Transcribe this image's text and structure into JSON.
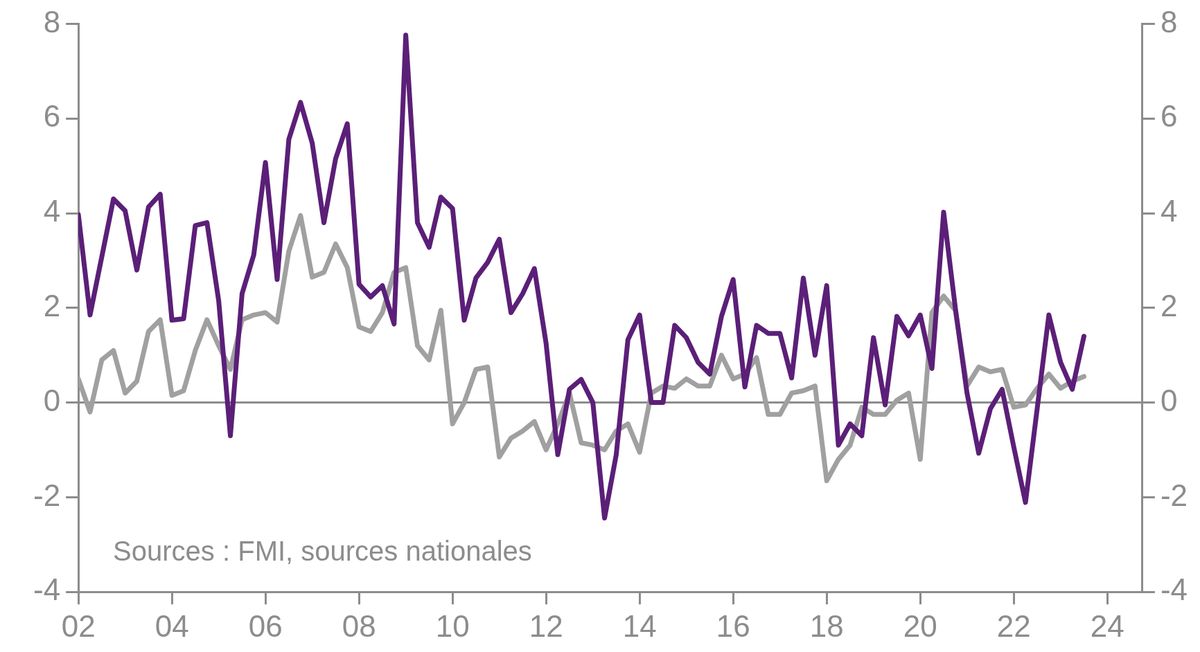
{
  "chart_data": {
    "type": "line",
    "x": [
      2002.0,
      2002.25,
      2002.75,
      2003.0,
      2003.25,
      2003.5,
      2003.75,
      2004.0,
      2004.25,
      2004.5,
      2004.75,
      2005.0,
      2005.25,
      2005.5,
      2005.75,
      2006.0,
      2006.25,
      2006.5,
      2006.75,
      2007.0,
      2007.25,
      2007.5,
      2007.75,
      2008.0,
      2008.25,
      2008.5,
      2008.75,
      2009.0,
      2009.25,
      2009.5,
      2009.75,
      2010.0,
      2010.25,
      2010.5,
      2010.75,
      2011.0,
      2011.25,
      2011.5,
      2011.75,
      2012.0,
      2012.25,
      2012.5,
      2012.75,
      2013.0,
      2013.25,
      2013.5,
      2013.75,
      2014.0,
      2014.25,
      2014.5,
      2014.75,
      2015.0,
      2015.25,
      2015.5,
      2015.75,
      2016.0,
      2016.25,
      2016.5,
      2016.75,
      2017.0,
      2017.25,
      2017.5,
      2017.75,
      2018.0,
      2018.25,
      2018.5,
      2018.75,
      2019.0,
      2019.25,
      2019.5,
      2019.75,
      2020.0,
      2020.25,
      2020.5,
      2020.75,
      2021.0,
      2021.25,
      2021.5,
      2021.75,
      2022.0,
      2022.25,
      2022.5,
      2022.75,
      2023.0,
      2023.25,
      2023.5
    ],
    "series": [
      {
        "color": "#5b1f78",
        "values": [
          3.97,
          1.85,
          4.3,
          4.05,
          2.8,
          4.13,
          4.4,
          1.74,
          1.77,
          3.74,
          3.8,
          2.15,
          -0.7,
          2.3,
          3.12,
          5.07,
          2.6,
          5.56,
          6.34,
          5.48,
          3.8,
          5.15,
          5.89,
          2.5,
          2.23,
          2.47,
          1.66,
          7.76,
          3.8,
          3.28,
          4.34,
          4.1,
          1.74,
          2.63,
          2.96,
          3.45,
          1.9,
          2.3,
          2.83,
          1.25,
          -1.1,
          0.28,
          0.49,
          0,
          -2.44,
          -1.1,
          1.33,
          1.85,
          0,
          0,
          1.63,
          1.37,
          0.85,
          0.6,
          1.82,
          2.6,
          0.33,
          1.63,
          1.46,
          1.46,
          0.52,
          2.63,
          1.0,
          2.47,
          -0.9,
          -0.45,
          -0.7,
          1.37,
          -0.05,
          1.82,
          1.41,
          1.85,
          0.72,
          4.02,
          2.0,
          0.2,
          -1.07,
          -0.13,
          0.28,
          -0.94,
          -2.11,
          -0.13,
          1.85,
          0.85,
          0.28,
          1.4
        ]
      },
      {
        "color": "#a0a0a0",
        "x": [
          2002.0,
          2002.25,
          2002.5,
          2002.75,
          2003.0,
          2003.25,
          2003.5,
          2003.75,
          2004.0,
          2004.25,
          2004.5,
          2004.75,
          2005.0,
          2005.25,
          2005.5,
          2005.75,
          2006.0,
          2006.25,
          2006.5,
          2006.75,
          2007.0,
          2007.25,
          2007.5,
          2007.75,
          2008.0,
          2008.25,
          2008.5,
          2008.75,
          2009.0,
          2009.25,
          2009.5,
          2009.75,
          2010.0,
          2010.25,
          2010.5,
          2010.75,
          2011.0,
          2011.25,
          2011.5,
          2011.75,
          2012.0,
          2012.25,
          2012.5,
          2012.75,
          2013.0,
          2013.25,
          2013.5,
          2013.75,
          2014.0,
          2014.25,
          2014.5,
          2014.75,
          2015.0,
          2015.25,
          2015.5,
          2015.75,
          2016.0,
          2016.25,
          2016.5,
          2016.75,
          2017.0,
          2017.25,
          2017.5,
          2017.75,
          2018.0,
          2018.25,
          2018.5,
          2018.75,
          2019.0,
          2019.25,
          2019.5,
          2019.75,
          2020.0,
          2020.25,
          2020.5,
          2020.75,
          2021.0,
          2021.25,
          2021.5,
          2021.75,
          2022.0,
          2022.25,
          2022.5,
          2022.75,
          2023.0,
          2023.25,
          2023.5
        ],
        "values": [
          0.5,
          -0.2,
          0.9,
          1.1,
          0.2,
          0.45,
          1.5,
          1.75,
          0.15,
          0.25,
          1.1,
          1.75,
          1.2,
          0.7,
          1.75,
          1.85,
          1.9,
          1.7,
          3.2,
          3.95,
          2.65,
          2.75,
          3.35,
          2.85,
          1.6,
          1.5,
          1.9,
          2.75,
          2.85,
          1.2,
          0.9,
          1.95,
          -0.45,
          0.0,
          0.7,
          0.75,
          -1.15,
          -0.75,
          -0.6,
          -0.4,
          -1.0,
          -0.45,
          0.2,
          -0.85,
          -0.9,
          -1.0,
          -0.6,
          -0.45,
          -1.05,
          0.2,
          0.35,
          0.3,
          0.5,
          0.35,
          0.35,
          1.0,
          0.5,
          0.6,
          0.95,
          -0.25,
          -0.25,
          0.2,
          0.25,
          0.35,
          -1.65,
          -1.2,
          -0.9,
          -0.1,
          -0.25,
          -0.25,
          0.05,
          0.2,
          -1.2,
          1.9,
          2.25,
          1.95,
          0.35,
          0.75,
          0.65,
          0.7,
          -0.1,
          -0.05,
          0.3,
          0.6,
          0.3,
          0.45,
          0.55
        ]
      }
    ],
    "xlim": [
      2002,
      2024.75
    ],
    "xticks": [
      {
        "value": 2002,
        "label": "02"
      },
      {
        "value": 2004,
        "label": "04"
      },
      {
        "value": 2006,
        "label": "06"
      },
      {
        "value": 2008,
        "label": "08"
      },
      {
        "value": 2010,
        "label": "10"
      },
      {
        "value": 2012,
        "label": "12"
      },
      {
        "value": 2014,
        "label": "14"
      },
      {
        "value": 2016,
        "label": "16"
      },
      {
        "value": 2018,
        "label": "18"
      },
      {
        "value": 2020,
        "label": "20"
      },
      {
        "value": 2022,
        "label": "22"
      },
      {
        "value": 2024,
        "label": "24"
      }
    ],
    "ylim": [
      -4,
      8
    ],
    "yticks": [
      -4,
      -2,
      0,
      2,
      4,
      6,
      8
    ],
    "y2lim": [
      -4,
      8
    ],
    "y2ticks": [
      -4,
      -2,
      0,
      2,
      4,
      6,
      8
    ],
    "ref_lines": [
      {
        "axis": "y",
        "value": 0,
        "color": "#8c8c8c"
      }
    ],
    "annotations": [
      "Sources : FMI, sources nationales"
    ],
    "grid": false,
    "legend": false,
    "marker": "none",
    "line_style": "solid"
  }
}
